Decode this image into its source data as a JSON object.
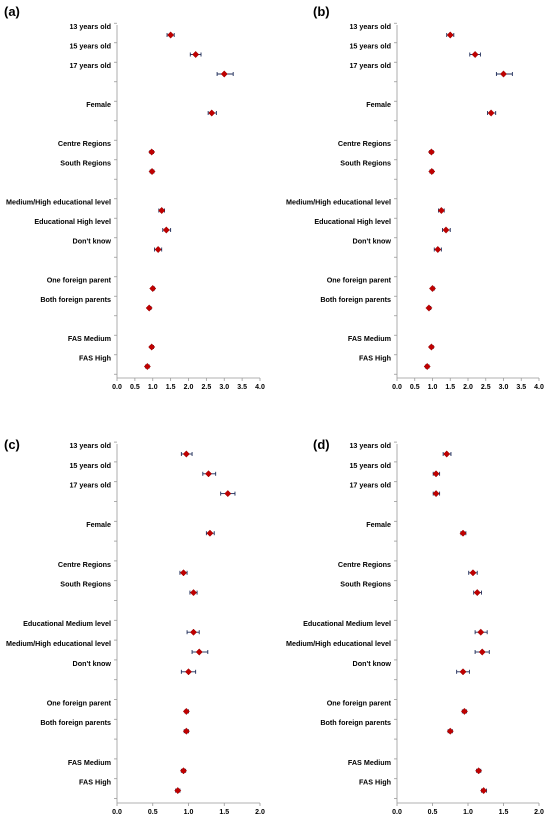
{
  "chart_data": [
    {
      "type": "scatter",
      "panel": "(a)",
      "xlim": [
        0,
        4
      ],
      "xticks": [
        "0.0",
        "0.5",
        "1.0",
        "1.5",
        "2.0",
        "2.5",
        "3.0",
        "3.5",
        "4.0"
      ],
      "tickvals": [
        0,
        0.5,
        1,
        1.5,
        2,
        2.5,
        3,
        3.5,
        4
      ],
      "points": [
        {
          "label": "13 years old",
          "value": 1.5,
          "lo": 1.4,
          "hi": 1.6
        },
        {
          "label": "15 years old",
          "value": 2.2,
          "lo": 2.05,
          "hi": 2.35
        },
        {
          "label": "17 years old",
          "value": 3.0,
          "lo": 2.8,
          "hi": 3.25
        },
        {
          "label": "",
          "value": null
        },
        {
          "label": "Female",
          "value": 2.65,
          "lo": 2.55,
          "hi": 2.78
        },
        {
          "label": "",
          "value": null
        },
        {
          "label": "Centre Regions",
          "value": 0.97,
          "lo": 0.92,
          "hi": 1.02
        },
        {
          "label": "South Regions",
          "value": 0.98,
          "lo": 0.93,
          "hi": 1.03
        },
        {
          "label": "",
          "value": null
        },
        {
          "label": "Medium/High educational level",
          "value": 1.25,
          "lo": 1.17,
          "hi": 1.33
        },
        {
          "label": "Educational High level",
          "value": 1.38,
          "lo": 1.28,
          "hi": 1.5
        },
        {
          "label": "Don't know",
          "value": 1.15,
          "lo": 1.05,
          "hi": 1.25
        },
        {
          "label": "",
          "value": null
        },
        {
          "label": "One foreign parent",
          "value": 1.0,
          "lo": 0.97,
          "hi": 1.05
        },
        {
          "label": "Both foreign parents",
          "value": 0.9,
          "lo": 0.87,
          "hi": 0.95
        },
        {
          "label": "",
          "value": null
        },
        {
          "label": "FAS Medium",
          "value": 0.97,
          "lo": 0.93,
          "hi": 1.02
        },
        {
          "label": "FAS High",
          "value": 0.85,
          "lo": 0.8,
          "hi": 0.9
        }
      ]
    },
    {
      "type": "scatter",
      "panel": "(b)",
      "xlim": [
        0,
        4
      ],
      "xticks": [
        "0.0",
        "0.5",
        "1.0",
        "1.5",
        "2.0",
        "2.5",
        "3.0",
        "3.5",
        "4.0"
      ],
      "tickvals": [
        0,
        0.5,
        1,
        1.5,
        2,
        2.5,
        3,
        3.5,
        4
      ],
      "points": [
        {
          "label": "13 years old",
          "value": 1.5,
          "lo": 1.4,
          "hi": 1.6
        },
        {
          "label": "15 years old",
          "value": 2.2,
          "lo": 2.05,
          "hi": 2.35
        },
        {
          "label": "17 years old",
          "value": 3.0,
          "lo": 2.8,
          "hi": 3.25
        },
        {
          "label": "",
          "value": null
        },
        {
          "label": "Female",
          "value": 2.65,
          "lo": 2.55,
          "hi": 2.78
        },
        {
          "label": "",
          "value": null
        },
        {
          "label": "Centre Regions",
          "value": 0.97,
          "lo": 0.92,
          "hi": 1.02
        },
        {
          "label": "South Regions",
          "value": 0.98,
          "lo": 0.93,
          "hi": 1.03
        },
        {
          "label": "",
          "value": null
        },
        {
          "label": "Medium/High educational level",
          "value": 1.25,
          "lo": 1.17,
          "hi": 1.33
        },
        {
          "label": "Educational High level",
          "value": 1.38,
          "lo": 1.28,
          "hi": 1.5
        },
        {
          "label": "Don't know",
          "value": 1.15,
          "lo": 1.05,
          "hi": 1.25
        },
        {
          "label": "",
          "value": null
        },
        {
          "label": "One foreign parent",
          "value": 1.0,
          "lo": 0.97,
          "hi": 1.05
        },
        {
          "label": "Both foreign parents",
          "value": 0.9,
          "lo": 0.87,
          "hi": 0.95
        },
        {
          "label": "",
          "value": null
        },
        {
          "label": "FAS Medium",
          "value": 0.97,
          "lo": 0.93,
          "hi": 1.02
        },
        {
          "label": "FAS High",
          "value": 0.85,
          "lo": 0.8,
          "hi": 0.9
        }
      ]
    },
    {
      "type": "scatter",
      "panel": "(c)",
      "xlim": [
        0,
        2
      ],
      "xticks": [
        "0.0",
        "0.5",
        "1.0",
        "1.5",
        "2.0"
      ],
      "tickvals": [
        0,
        0.5,
        1,
        1.5,
        2
      ],
      "points": [
        {
          "label": "13 years old",
          "value": 0.97,
          "lo": 0.9,
          "hi": 1.05
        },
        {
          "label": "15 years old",
          "value": 1.28,
          "lo": 1.2,
          "hi": 1.38
        },
        {
          "label": "17 years old",
          "value": 1.55,
          "lo": 1.45,
          "hi": 1.65
        },
        {
          "label": "",
          "value": null
        },
        {
          "label": "Female",
          "value": 1.3,
          "lo": 1.25,
          "hi": 1.36
        },
        {
          "label": "",
          "value": null
        },
        {
          "label": "Centre Regions",
          "value": 0.93,
          "lo": 0.88,
          "hi": 0.98
        },
        {
          "label": "South Regions",
          "value": 1.07,
          "lo": 1.02,
          "hi": 1.12
        },
        {
          "label": "",
          "value": null
        },
        {
          "label": "Educational Medium level",
          "value": 1.07,
          "lo": 0.98,
          "hi": 1.15
        },
        {
          "label": "Medium/High educational level",
          "value": 1.15,
          "lo": 1.05,
          "hi": 1.27
        },
        {
          "label": "Don't know",
          "value": 1.0,
          "lo": 0.9,
          "hi": 1.1
        },
        {
          "label": "",
          "value": null
        },
        {
          "label": "One foreign parent",
          "value": 0.97,
          "lo": 0.95,
          "hi": 1.0
        },
        {
          "label": "Both foreign parents",
          "value": 0.97,
          "lo": 0.94,
          "hi": 1.0
        },
        {
          "label": "",
          "value": null
        },
        {
          "label": "FAS Medium",
          "value": 0.93,
          "lo": 0.9,
          "hi": 0.96
        },
        {
          "label": "FAS High",
          "value": 0.85,
          "lo": 0.82,
          "hi": 0.88
        }
      ]
    },
    {
      "type": "scatter",
      "panel": "(d)",
      "xlim": [
        0,
        2
      ],
      "xticks": [
        "0.0",
        "0.5",
        "1.0",
        "1.5",
        "2.0"
      ],
      "tickvals": [
        0,
        0.5,
        1,
        1.5,
        2
      ],
      "points": [
        {
          "label": "13 years old",
          "value": 0.7,
          "lo": 0.65,
          "hi": 0.76
        },
        {
          "label": "15 years old",
          "value": 0.55,
          "lo": 0.51,
          "hi": 0.6
        },
        {
          "label": "17 years old",
          "value": 0.55,
          "lo": 0.51,
          "hi": 0.6
        },
        {
          "label": "",
          "value": null
        },
        {
          "label": "Female",
          "value": 0.93,
          "lo": 0.9,
          "hi": 0.97
        },
        {
          "label": "",
          "value": null
        },
        {
          "label": "Centre Regions",
          "value": 1.07,
          "lo": 1.01,
          "hi": 1.13
        },
        {
          "label": "South Regions",
          "value": 1.13,
          "lo": 1.08,
          "hi": 1.19
        },
        {
          "label": "",
          "value": null
        },
        {
          "label": "Educational Medium level",
          "value": 1.18,
          "lo": 1.1,
          "hi": 1.27
        },
        {
          "label": "Medium/High educational level",
          "value": 1.2,
          "lo": 1.1,
          "hi": 1.3
        },
        {
          "label": "Don't know",
          "value": 0.93,
          "lo": 0.84,
          "hi": 1.02
        },
        {
          "label": "",
          "value": null
        },
        {
          "label": "One foreign parent",
          "value": 0.95,
          "lo": 0.92,
          "hi": 0.98
        },
        {
          "label": "Both foreign parents",
          "value": 0.75,
          "lo": 0.72,
          "hi": 0.78
        },
        {
          "label": "",
          "value": null
        },
        {
          "label": "FAS Medium",
          "value": 1.15,
          "lo": 1.12,
          "hi": 1.18
        },
        {
          "label": "FAS High",
          "value": 1.22,
          "lo": 1.19,
          "hi": 1.26
        }
      ]
    }
  ],
  "colors": {
    "marker": "#c00000",
    "errorbar": "#1f2d5a",
    "axis": "#999999"
  }
}
